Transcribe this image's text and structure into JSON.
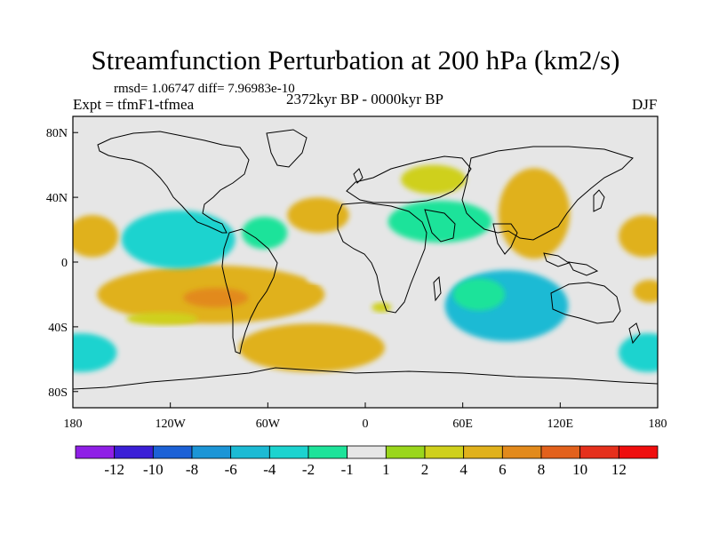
{
  "chart_data": {
    "type": "heatmap",
    "title": "Streamfunction Perturbation at 200 hPa (km2/s)",
    "stats_label": "rmsd= 1.06747 diff= 7.96983e-10",
    "experiment_label": "Expt = tfmF1-tfmea",
    "period_label": "2372kyr BP - 0000kyr BP",
    "season_label": "DJF",
    "x_ticks": [
      {
        "lon": -180,
        "label": "180"
      },
      {
        "lon": -120,
        "label": "120W"
      },
      {
        "lon": -60,
        "label": "60W"
      },
      {
        "lon": 0,
        "label": "0"
      },
      {
        "lon": 60,
        "label": "60E"
      },
      {
        "lon": 120,
        "label": "120E"
      },
      {
        "lon": 180,
        "label": "180"
      }
    ],
    "y_ticks": [
      {
        "lat": 80,
        "label": "80N"
      },
      {
        "lat": 40,
        "label": "40N"
      },
      {
        "lat": 0,
        "label": "0"
      },
      {
        "lat": -40,
        "label": "40S"
      },
      {
        "lat": -80,
        "label": "80S"
      }
    ],
    "xlim": [
      -180,
      180
    ],
    "ylim": [
      -90,
      90
    ],
    "colorbar": {
      "levels": [
        "-12",
        "-10",
        "-8",
        "-6",
        "-4",
        "-2",
        "-1",
        "1",
        "2",
        "4",
        "6",
        "8",
        "10",
        "12"
      ],
      "colors": [
        "#8f1fe6",
        "#3b1fd6",
        "#1c61d6",
        "#1c95d6",
        "#1cbad4",
        "#1cd3cf",
        "#1ee39a",
        "#e6e6e6",
        "#9ad61c",
        "#cfd01c",
        "#e0b11c",
        "#e28a1c",
        "#e2611c",
        "#e5301c",
        "#ef0e0e"
      ]
    },
    "anomalies": [
      {
        "region": "Central Pacific (S)",
        "lon": -95,
        "lat": -20,
        "rx": 70,
        "ry": 18,
        "level": 4
      },
      {
        "region": "Central Pacific core",
        "lon": -92,
        "lat": -22,
        "rx": 20,
        "ry": 6,
        "level": 6
      },
      {
        "region": "Eastern Pacific (N)",
        "lon": -115,
        "lat": 14,
        "rx": 35,
        "ry": 18,
        "level": -4
      },
      {
        "region": "Gulf of Mexico",
        "lon": -62,
        "lat": 18,
        "rx": 14,
        "ry": 10,
        "level": -2
      },
      {
        "region": "Western Pacific (N)",
        "lon": -168,
        "lat": 16,
        "rx": 16,
        "ry": 13,
        "level": 4
      },
      {
        "region": "Western Pacific (S)",
        "lon": -175,
        "lat": -56,
        "rx": 22,
        "ry": 12,
        "level": -4
      },
      {
        "region": "Southern Pacific",
        "lon": -125,
        "lat": -35,
        "rx": 22,
        "ry": 4,
        "level": 2
      },
      {
        "region": "South Atlantic",
        "lon": -33,
        "lat": -53,
        "rx": 45,
        "ry": 15,
        "level": 4
      },
      {
        "region": "North Atlantic subtropics",
        "lon": -29,
        "lat": 29,
        "rx": 19,
        "ry": 11,
        "level": 4
      },
      {
        "region": "North Atlantic high latitudes",
        "lon": -4,
        "lat": 58,
        "rx": 25,
        "ry": 12,
        "level": -1
      },
      {
        "region": "Eastern Europe",
        "lon": 42,
        "lat": 51,
        "rx": 20,
        "ry": 9,
        "level": 2
      },
      {
        "region": "Middle East",
        "lon": 46,
        "lat": 25,
        "rx": 32,
        "ry": 13,
        "level": -2
      },
      {
        "region": "East Asia",
        "lon": 104,
        "lat": 30,
        "rx": 22,
        "ry": 28,
        "level": 4
      },
      {
        "region": "Western Australia",
        "lon": 87,
        "lat": -27,
        "rx": 38,
        "ry": 22,
        "level": -6
      },
      {
        "region": "Southwest Indian Ocean",
        "lon": 70,
        "lat": -20,
        "rx": 16,
        "ry": 10,
        "level": -2
      },
      {
        "region": "Alaska / Bering",
        "lon": 146,
        "lat": 60,
        "rx": 8,
        "ry": 6,
        "level": -1
      },
      {
        "region": "Northeast Pacific",
        "lon": 172,
        "lat": 16,
        "rx": 16,
        "ry": 13,
        "level": 4
      },
      {
        "region": "Far Southeast Pacific",
        "lon": 174,
        "lat": -56,
        "rx": 18,
        "ry": 12,
        "level": -4
      },
      {
        "region": "Eastern Tropical Pacific",
        "lon": 175,
        "lat": -18,
        "rx": 10,
        "ry": 7,
        "level": 4
      },
      {
        "region": "South Atlantic small",
        "lon": -30,
        "lat": -10,
        "rx": 6,
        "ry": 3,
        "level": -1
      },
      {
        "region": "Southeast Africa",
        "lon": 10,
        "lat": -28,
        "rx": 6,
        "ry": 3,
        "level": 2
      }
    ]
  }
}
